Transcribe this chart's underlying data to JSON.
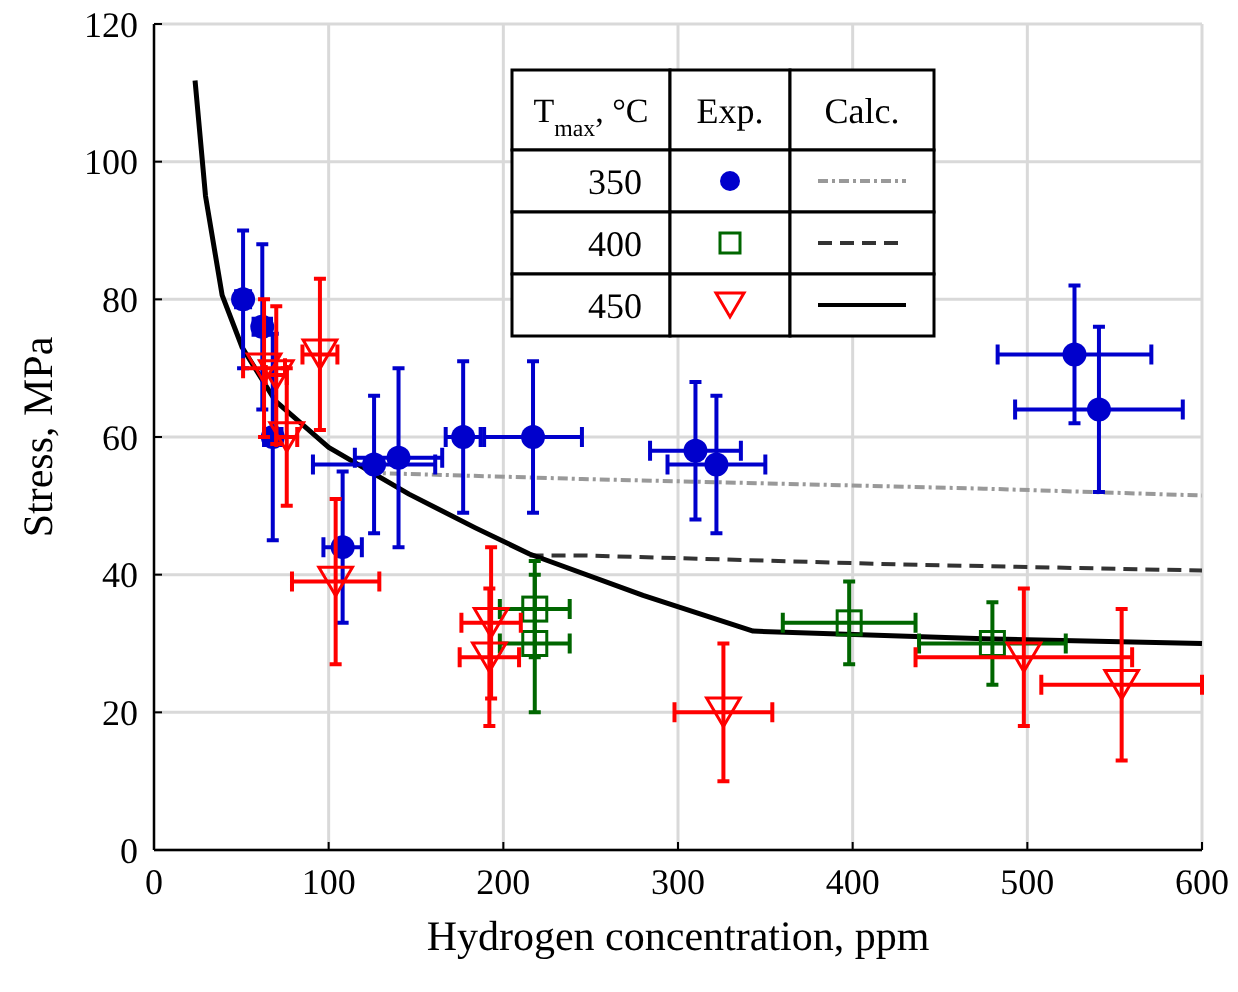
{
  "chart_data": {
    "type": "scatter",
    "xlabel": "Hydrogen concentration, ppm",
    "ylabel": "Stress, MPa",
    "xlim": [
      0,
      600
    ],
    "ylim": [
      0,
      120
    ],
    "xticks": [
      0,
      100,
      200,
      300,
      400,
      500,
      600
    ],
    "yticks": [
      0,
      20,
      40,
      60,
      80,
      100,
      120
    ],
    "grid": true,
    "legend": "top",
    "legend_title": "T$_{max}$, °C",
    "annotations": [
      "Exp.",
      "Calc."
    ],
    "series": [
      {
        "name": "350",
        "marker": "circle",
        "color": "#0000cc",
        "x": [
          51,
          62,
          68,
          108,
          126,
          140,
          177,
          217,
          310,
          322,
          527,
          541
        ],
        "values": [
          80,
          76,
          60,
          44,
          56,
          57,
          60,
          60,
          58,
          56,
          72,
          64
        ],
        "xerrors": [
          4,
          5,
          5,
          11,
          35,
          25,
          10,
          28,
          26,
          28,
          44,
          48
        ],
        "errors": [
          10,
          12,
          15,
          11,
          10,
          13,
          11,
          11,
          10,
          10,
          10,
          12
        ]
      },
      {
        "name": "400",
        "marker": "square",
        "color": "#006600",
        "x": [
          218,
          218,
          398,
          480
        ],
        "values": [
          35,
          30,
          33,
          30
        ],
        "xerrors": [
          20,
          20,
          38,
          42
        ],
        "errors": [
          7,
          10,
          6,
          6
        ]
      },
      {
        "name": "450",
        "marker": "triangle",
        "color": "#ff0000",
        "x": [
          63,
          70,
          76,
          95,
          104,
          193,
          192,
          326,
          498,
          554
        ],
        "values": [
          70,
          69,
          60,
          72,
          39,
          33,
          28,
          20,
          28,
          24
        ],
        "xerrors": [
          12,
          6,
          6,
          10,
          25,
          17,
          17,
          28,
          62,
          46
        ],
        "errors": [
          10,
          10,
          10,
          11,
          12,
          11,
          10,
          10,
          10,
          11
        ]
      },
      {
        "type": "line",
        "line_style": "dotted",
        "color": "#999999",
        "x": [
          123,
          245,
          475,
          600
        ],
        "values": [
          54.8,
          53.9,
          52.5,
          51.5
        ]
      },
      {
        "type": "line",
        "line_style": "dashed",
        "color": "#333333",
        "x": [
          215,
          245,
          425,
          600
        ],
        "values": [
          42.8,
          42.8,
          41.5,
          40.6
        ]
      },
      {
        "type": "line",
        "line_style": "solid",
        "color": "#000000",
        "x": [
          23.5,
          29.5,
          39,
          50.5,
          69.6,
          100,
          146,
          184,
          215,
          280,
          343,
          475,
          600
        ],
        "values": [
          111.8,
          95,
          80.6,
          73,
          65.2,
          58.5,
          51.7,
          46.8,
          43,
          37,
          31.8,
          30.7,
          30
        ]
      }
    ]
  }
}
